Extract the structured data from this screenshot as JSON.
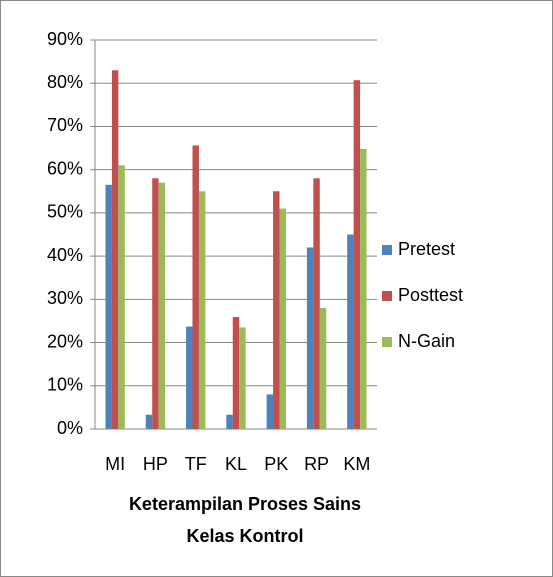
{
  "chart_data": {
    "type": "bar",
    "title": "Keterampilan Proses Sains Kelas Kontrol",
    "categories": [
      "MI",
      "HP",
      "TF",
      "KL",
      "PK",
      "RP",
      "KM"
    ],
    "series": [
      {
        "name": "Pretest",
        "color": "#4f81bd",
        "values": [
          56.5,
          3.3,
          23.7,
          3.3,
          8,
          42,
          45
        ]
      },
      {
        "name": "Posttest",
        "color": "#c0504d",
        "values": [
          83,
          58,
          65.6,
          25.9,
          55,
          58,
          80.7
        ]
      },
      {
        "name": "N-Gain",
        "color": "#9bbb59",
        "values": [
          61,
          57,
          55,
          23.5,
          51,
          28,
          64.8
        ]
      }
    ],
    "ylim": [
      0,
      90
    ],
    "yticks": [
      {
        "value": 0,
        "label": "0%"
      },
      {
        "value": 10,
        "label": "10%"
      },
      {
        "value": 20,
        "label": "20%"
      },
      {
        "value": 30,
        "label": "30%"
      },
      {
        "value": 40,
        "label": "40%"
      },
      {
        "value": 50,
        "label": "50%"
      },
      {
        "value": 60,
        "label": "60%"
      },
      {
        "value": 70,
        "label": "70%"
      },
      {
        "value": 80,
        "label": "80%"
      },
      {
        "value": 90,
        "label": "90%"
      }
    ],
    "grid": true,
    "legend": "right"
  }
}
